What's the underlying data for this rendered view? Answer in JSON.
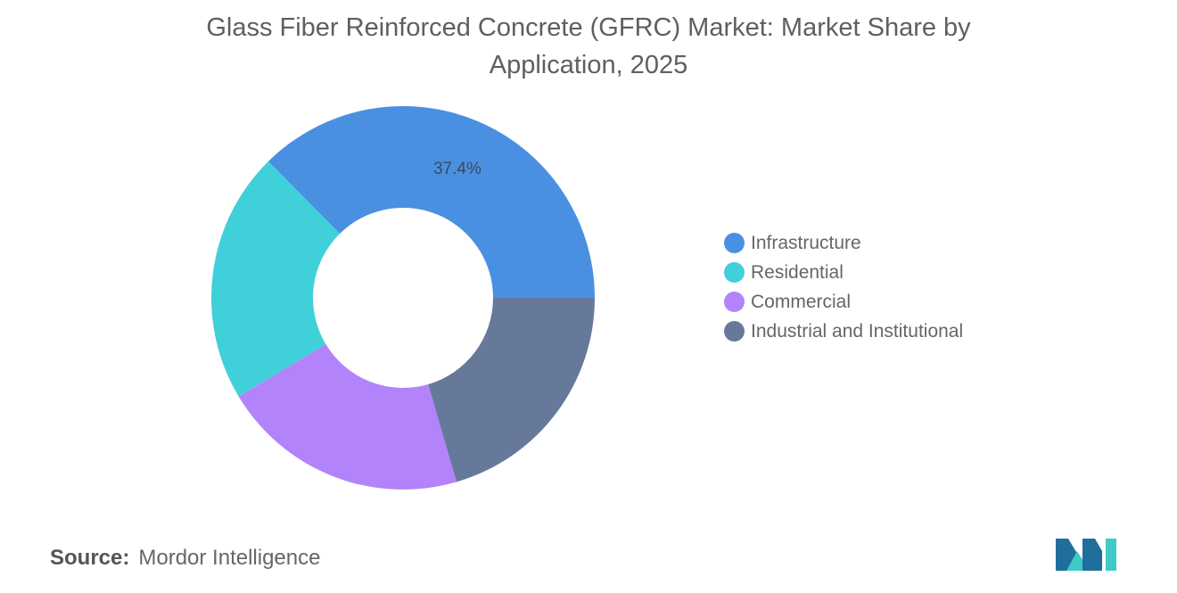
{
  "chart_data": {
    "type": "pie",
    "donut": true,
    "title": "Glass Fiber Reinforced Concrete (GFRC) Market: Market Share by Application, 2025",
    "categories": [
      "Infrastructure",
      "Residential",
      "Commercial",
      "Industrial and Institutional"
    ],
    "values": [
      37.4,
      21.2,
      20.9,
      20.5
    ],
    "data_labels": [
      "37.4%",
      "",
      "",
      ""
    ],
    "colors": [
      "#4a90e2",
      "#40d0da",
      "#b283fb",
      "#66799b"
    ],
    "legend_position": "right"
  },
  "source": {
    "label": "Source:",
    "value": "Mordor Intelligence"
  },
  "logo": {
    "name": "mordor-intelligence-logo",
    "colors": [
      "#1f6e9b",
      "#3fc9c9"
    ]
  }
}
